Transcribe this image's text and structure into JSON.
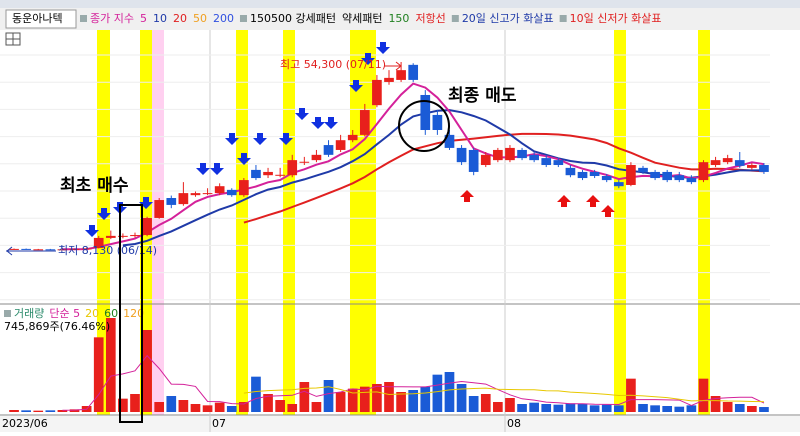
{
  "chart_data": {
    "type": "candlestick",
    "stock_name": "동운아나텍",
    "legend": [
      {
        "name": "종가 지수",
        "color": "#d4219a"
      },
      {
        "name": "5",
        "color": "#d4219a"
      },
      {
        "name": "10",
        "color": "#1f3aa8"
      },
      {
        "name": "20",
        "color": "#e02020"
      },
      {
        "name": "50",
        "color": "#f0a020"
      },
      {
        "name": "200",
        "color": "#3050e0"
      },
      {
        "name": "150500 강세패턴",
        "color": "#000000"
      },
      {
        "name": "약세패턴",
        "color": "#000000"
      },
      {
        "name": "150",
        "color": "#208020"
      },
      {
        "name": "저항선",
        "color": "#e02020"
      },
      {
        "name": "20일 신고가 화살표",
        "color": "#1f3aa8"
      },
      {
        "name": "10일 신저가 화살표",
        "color": "#e02020"
      }
    ],
    "open": [
      8300,
      8400,
      8300,
      8300,
      8200,
      8300,
      8400,
      8600,
      11100,
      11600,
      11600,
      11800,
      16000,
      20900,
      19400,
      21600,
      22100,
      22100,
      22900,
      21600,
      27800,
      26500,
      26500,
      26500,
      29700,
      30200,
      33900,
      32700,
      35100,
      36400,
      43700,
      49400,
      49900,
      53600,
      46200,
      41300,
      36400,
      33200,
      32700,
      29000,
      30200,
      30200,
      32700,
      31500,
      30700,
      30200,
      28300,
      27300,
      27300,
      26300,
      24800,
      24100,
      28300,
      27300,
      27300,
      26500,
      25800,
      25300,
      29000,
      29700,
      30200,
      28300,
      29000
    ],
    "high": [
      8500,
      8500,
      8400,
      8400,
      8400,
      8500,
      8700,
      11600,
      12900,
      12200,
      12400,
      16300,
      20900,
      21500,
      24800,
      22500,
      23300,
      24500,
      23300,
      25800,
      29000,
      28300,
      28300,
      31500,
      31000,
      32700,
      35100,
      36400,
      37600,
      44000,
      51100,
      52300,
      54300,
      54000,
      47400,
      42500,
      37600,
      33900,
      33200,
      32200,
      33200,
      33900,
      33200,
      32200,
      31500,
      30700,
      29000,
      27800,
      27800,
      26800,
      25300,
      29700,
      28800,
      27800,
      27800,
      27300,
      26500,
      30200,
      31000,
      31500,
      32200,
      29500,
      29500
    ],
    "low": [
      8200,
      8200,
      8200,
      8130,
      8150,
      8200,
      8300,
      8500,
      10800,
      11000,
      11200,
      11500,
      15800,
      18400,
      19000,
      21200,
      21600,
      21600,
      21200,
      21200,
      25300,
      25800,
      26000,
      26000,
      29000,
      29700,
      31000,
      32200,
      34600,
      36000,
      43200,
      48700,
      49400,
      49400,
      36400,
      36400,
      32700,
      29000,
      26500,
      28500,
      29700,
      29700,
      30200,
      29700,
      28500,
      28500,
      26000,
      25300,
      25800,
      24800,
      23300,
      23800,
      26800,
      25300,
      24800,
      24800,
      24300,
      24800,
      28500,
      29200,
      28300,
      27800,
      26800
    ],
    "close": [
      8400,
      8300,
      8300,
      8200,
      8300,
      8400,
      8500,
      11100,
      11600,
      11600,
      11800,
      16000,
      20400,
      19200,
      22100,
      22100,
      22100,
      23800,
      21600,
      25300,
      25800,
      27300,
      26600,
      30200,
      29800,
      31500,
      31500,
      35100,
      36400,
      42500,
      49900,
      50400,
      52300,
      49900,
      37600,
      37600,
      33200,
      29700,
      27300,
      31500,
      32700,
      33200,
      30700,
      30200,
      29000,
      29000,
      26500,
      25800,
      26300,
      25300,
      23800,
      29000,
      27300,
      25800,
      25300,
      25300,
      24800,
      29700,
      30200,
      30700,
      28800,
      29000,
      27300
    ],
    "volume": [
      300000,
      250000,
      200000,
      250000,
      300000,
      400000,
      900000,
      11200000,
      14100000,
      2000000,
      2700000,
      12300000,
      1500000,
      2400000,
      1800000,
      1200000,
      1000000,
      1400000,
      900000,
      1500000,
      5300000,
      2700000,
      1800000,
      1200000,
      4500000,
      1500000,
      4800000,
      3000000,
      3500000,
      3800000,
      4200000,
      4500000,
      3000000,
      3300000,
      3800000,
      5600000,
      6000000,
      4200000,
      2400000,
      2700000,
      1500000,
      2100000,
      1200000,
      1400000,
      1200000,
      1100000,
      1300000,
      1200000,
      1000000,
      1100000,
      1000000,
      5000000,
      1200000,
      1000000,
      900000,
      800000,
      1000000,
      5000000,
      2400000,
      1500000,
      1200000,
      900000,
      745869
    ],
    "high_label": "최고 54,300 (07/11)",
    "low_label": "최저 8,130 (06/14)",
    "annotations": [
      "최초 매수",
      "최종 매도"
    ],
    "x_labels": [
      "2023/06",
      "07",
      "08"
    ],
    "volume_legend": [
      {
        "name": "거래량",
        "color": "#2a8a6a"
      },
      {
        "name": "단순 5",
        "color": "#d4219a"
      },
      {
        "name": "20",
        "color": "#e8c800"
      },
      {
        "name": "60",
        "color": "#208020"
      },
      {
        "name": "120",
        "color": "#f0a020"
      }
    ],
    "volume_label": "745,869주(76.46%)"
  }
}
